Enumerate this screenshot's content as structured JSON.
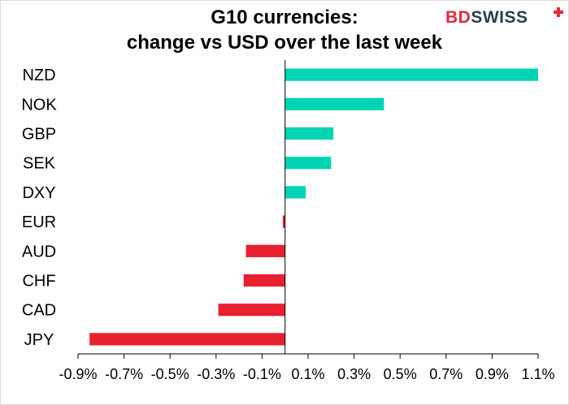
{
  "title_line1": "G10 currencies:",
  "title_line2": "change vs USD over the last week",
  "logo": {
    "part1": "BD",
    "part2": "SWISS"
  },
  "colors": {
    "positive": "#00d4b4",
    "negative": "#e8202f",
    "axis": "#000000",
    "logo_red": "#e32a3a",
    "logo_dark": "#2d3b4e"
  },
  "chart_data": {
    "type": "bar",
    "orientation": "horizontal",
    "title": "G10 currencies: change vs USD over the last week",
    "categories": [
      "NZD",
      "NOK",
      "GBP",
      "SEK",
      "DXY",
      "EUR",
      "AUD",
      "CHF",
      "CAD",
      "JPY"
    ],
    "values": [
      1.1,
      0.43,
      0.21,
      0.2,
      0.09,
      -0.01,
      -0.17,
      -0.18,
      -0.29,
      -0.85
    ],
    "xlim": [
      -0.9,
      1.1
    ],
    "xticks": [
      -0.9,
      -0.7,
      -0.5,
      -0.3,
      -0.1,
      0.1,
      0.3,
      0.5,
      0.7,
      0.9,
      1.1
    ],
    "xtick_labels": [
      "-0.9%",
      "-0.7%",
      "-0.5%",
      "-0.3%",
      "-0.1%",
      "0.1%",
      "0.3%",
      "0.5%",
      "0.7%",
      "0.9%",
      "1.1%"
    ],
    "grid": false,
    "legend": "none"
  }
}
